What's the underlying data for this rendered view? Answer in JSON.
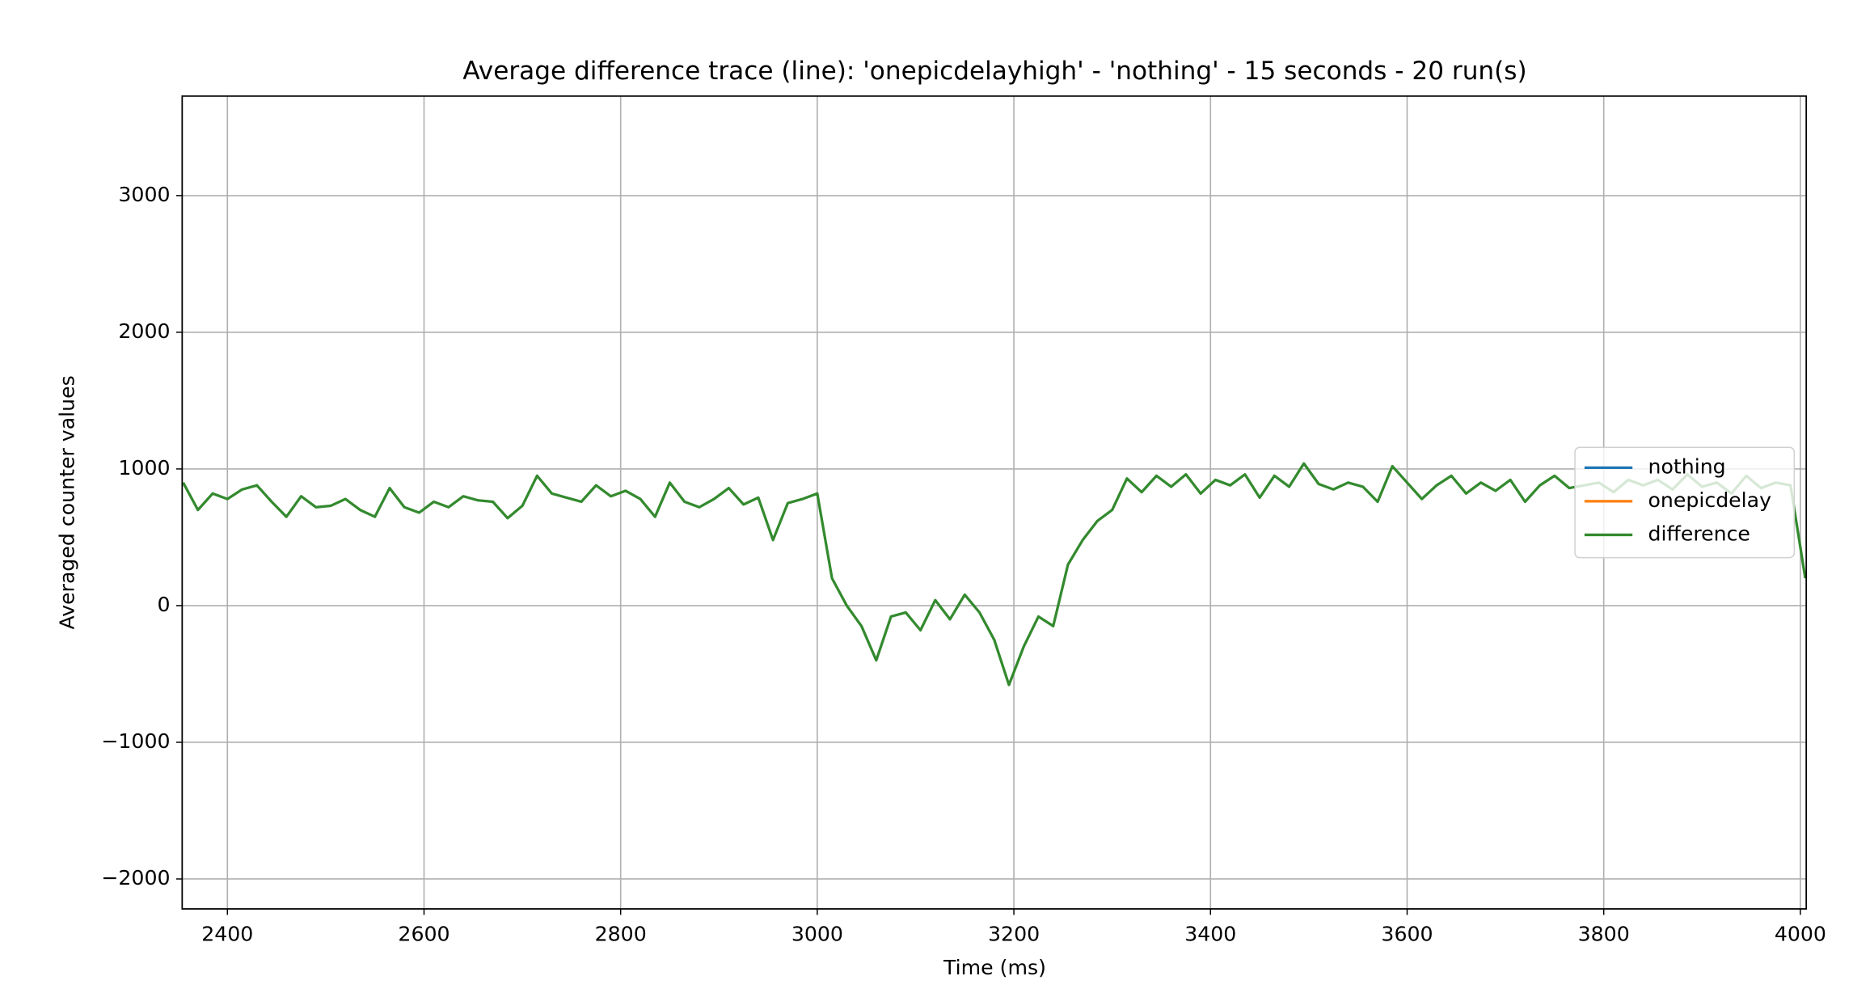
{
  "chart_data": {
    "type": "line",
    "title": "Average difference trace (line): 'onepicdelayhigh' - 'nothing' - 15 seconds - 20 run(s)",
    "x_label": "Time (ms)",
    "y_label": "Averaged counter values",
    "x": [
      2355,
      2370,
      2385,
      2400,
      2415,
      2430,
      2445,
      2460,
      2475,
      2490,
      2505,
      2520,
      2535,
      2550,
      2565,
      2580,
      2595,
      2610,
      2625,
      2640,
      2655,
      2670,
      2685,
      2700,
      2715,
      2730,
      2745,
      2760,
      2775,
      2790,
      2805,
      2820,
      2835,
      2850,
      2865,
      2880,
      2895,
      2910,
      2925,
      2940,
      2955,
      2970,
      2985,
      3000,
      3015,
      3030,
      3045,
      3060,
      3075,
      3090,
      3105,
      3120,
      3135,
      3150,
      3165,
      3180,
      3195,
      3210,
      3225,
      3240,
      3255,
      3270,
      3285,
      3300,
      3315,
      3330,
      3345,
      3360,
      3375,
      3390,
      3405,
      3420,
      3435,
      3450,
      3465,
      3480,
      3495,
      3510,
      3525,
      3540,
      3555,
      3570,
      3585,
      3600,
      3615,
      3630,
      3645,
      3660,
      3675,
      3690,
      3705,
      3720,
      3735,
      3750,
      3765,
      3780,
      3795,
      3810,
      3825,
      3840,
      3855,
      3870,
      3885,
      3900,
      3915,
      3930,
      3945,
      3960,
      3975,
      3990,
      4005
    ],
    "series": [
      {
        "name": "nothing",
        "color": "#1f77b4",
        "values": [
          null,
          null,
          null,
          null,
          null,
          null,
          null,
          null,
          null,
          null,
          null,
          null,
          null,
          null,
          null,
          null,
          null,
          null,
          null,
          null,
          null,
          null,
          null,
          null,
          null,
          null,
          null,
          null,
          null,
          null,
          null,
          null,
          null,
          null,
          null,
          null,
          null,
          null,
          null,
          null,
          null,
          null,
          null,
          null,
          null,
          null,
          null,
          null,
          null,
          null,
          null,
          null,
          null,
          null,
          null,
          null,
          null,
          null,
          null,
          null,
          null,
          null,
          null,
          null,
          null,
          null,
          null,
          null,
          null,
          null,
          null,
          null,
          null,
          null,
          null,
          null,
          null,
          null,
          null,
          null,
          null,
          null,
          null,
          null,
          null,
          null,
          null,
          null,
          null,
          null,
          null,
          null,
          null,
          null,
          null,
          null,
          null,
          null,
          null,
          null,
          null,
          null,
          null,
          null,
          null,
          null,
          null,
          null,
          null,
          null,
          null
        ]
      },
      {
        "name": "onepicdelay",
        "color": "#ff7f0e",
        "values": [
          null,
          null,
          null,
          null,
          null,
          null,
          null,
          null,
          null,
          null,
          null,
          null,
          null,
          null,
          null,
          null,
          null,
          null,
          null,
          null,
          null,
          null,
          null,
          null,
          null,
          null,
          null,
          null,
          null,
          null,
          null,
          null,
          null,
          null,
          null,
          null,
          null,
          null,
          null,
          null,
          null,
          null,
          null,
          null,
          null,
          null,
          null,
          null,
          null,
          null,
          null,
          null,
          null,
          null,
          null,
          null,
          null,
          null,
          null,
          null,
          null,
          null,
          null,
          null,
          null,
          null,
          null,
          null,
          null,
          null,
          null,
          null,
          null,
          null,
          null,
          null,
          null,
          null,
          null,
          null,
          null,
          null,
          null,
          null,
          null,
          null,
          null,
          null,
          null,
          null,
          null,
          null,
          null,
          null,
          null,
          null,
          null,
          null,
          null,
          null,
          null,
          null,
          null,
          null,
          null,
          null,
          null,
          null,
          null,
          null,
          null
        ]
      },
      {
        "name": "difference",
        "color": "#338a2e",
        "values": [
          900,
          700,
          820,
          780,
          850,
          880,
          760,
          650,
          800,
          720,
          730,
          780,
          700,
          650,
          860,
          720,
          680,
          760,
          720,
          800,
          770,
          760,
          640,
          730,
          950,
          820,
          790,
          760,
          880,
          800,
          840,
          780,
          650,
          900,
          760,
          720,
          780,
          860,
          740,
          790,
          480,
          750,
          780,
          820,
          200,
          0,
          -150,
          -400,
          -80,
          -50,
          -180,
          40,
          -100,
          80,
          -50,
          -250,
          -580,
          -300,
          -80,
          -150,
          300,
          480,
          620,
          700,
          930,
          830,
          950,
          870,
          960,
          820,
          920,
          880,
          960,
          790,
          950,
          870,
          1040,
          890,
          850,
          900,
          870,
          760,
          1020,
          900,
          780,
          880,
          950,
          820,
          900,
          840,
          920,
          760,
          880,
          950,
          860,
          880,
          900,
          830,
          920,
          880,
          920,
          850,
          960,
          870,
          900,
          820,
          950,
          860,
          900,
          880,
          200
        ]
      }
    ],
    "xlim": [
      2354,
      4006
    ],
    "ylim": [
      -2219,
      3728
    ],
    "xticks": [
      2400,
      2600,
      2800,
      3000,
      3200,
      3400,
      3600,
      3800,
      4000
    ],
    "yticks": [
      {
        "value": -2000,
        "label": "−2000"
      },
      {
        "value": -1000,
        "label": "−1000"
      },
      0,
      1000,
      2000,
      3000
    ],
    "grid": true,
    "legend": "center right"
  }
}
